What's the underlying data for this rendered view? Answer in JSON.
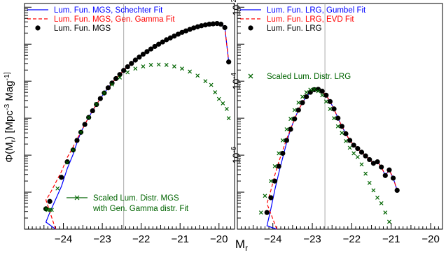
{
  "figure": {
    "ylabel": "Φ(M_r) [Mpc^-3 Mag^-1]",
    "xlabel": "M_r"
  },
  "chart_data": [
    {
      "type": "scatter",
      "panel": "left",
      "xlim": [
        -25,
        -19.6
      ],
      "x_reversed": true,
      "ylim": [
        -8,
        -1.9
      ],
      "y_log": true,
      "x_ticks": [
        -24,
        -23,
        -22,
        -21,
        -20
      ],
      "x_tick_labels": [
        "−24",
        "−23",
        "−22",
        "−21",
        "−20"
      ],
      "y_major_ticks": [
        -7,
        -6,
        -5,
        -4,
        -3,
        -2
      ],
      "y_tick_labels": [],
      "vertical_line": -22.45,
      "legend_position": "top-left",
      "legend": [
        {
          "label": "Lum. Fun. MGS, Schechter Fit",
          "style": "solid-line",
          "color": "#0000ff"
        },
        {
          "label": "Lum. Fun. MGS, Gen. Gamma Fit",
          "style": "dashed-line",
          "color": "#ff0000"
        },
        {
          "label": "Lum. Fun. MGS",
          "style": "filled-circle",
          "color": "#000000"
        }
      ],
      "annotation": {
        "lines": [
          "Scaled Lum. Distr. MGS",
          "with Gen. Gamma distr. Fit"
        ],
        "color": "#006400",
        "position": "bottom-center"
      },
      "series": [
        {
          "name": "Lum. Fun. MGS",
          "marker": "circle",
          "color": "#000000",
          "x": [
            -24.45,
            -24.35,
            -24.05,
            -23.9,
            -23.75,
            -23.65,
            -23.55,
            -23.45,
            -23.35,
            -23.25,
            -23.15,
            -23.05,
            -22.95,
            -22.85,
            -22.75,
            -22.65,
            -22.55,
            -22.45,
            -22.35,
            -22.25,
            -22.15,
            -22.05,
            -21.95,
            -21.85,
            -21.75,
            -21.65,
            -21.55,
            -21.45,
            -21.35,
            -21.25,
            -21.15,
            -21.05,
            -20.95,
            -20.85,
            -20.75,
            -20.65,
            -20.55,
            -20.45,
            -20.35,
            -20.25,
            -20.15,
            -20.05,
            -19.95,
            -19.85,
            -19.75
          ],
          "y": [
            -7.45,
            -7.25,
            -6.6,
            -6.18,
            -5.86,
            -5.6,
            -5.38,
            -5.17,
            -4.98,
            -4.8,
            -4.63,
            -4.47,
            -4.32,
            -4.18,
            -4.05,
            -3.93,
            -3.82,
            -3.71,
            -3.61,
            -3.52,
            -3.43,
            -3.35,
            -3.27,
            -3.2,
            -3.13,
            -3.06,
            -3.0,
            -2.94,
            -2.88,
            -2.83,
            -2.78,
            -2.73,
            -2.68,
            -2.64,
            -2.6,
            -2.56,
            -2.53,
            -2.5,
            -2.48,
            -2.46,
            -2.45,
            -2.44,
            -2.46,
            -2.55,
            -3.48
          ]
        },
        {
          "name": "Scaled Lum. Distr. MGS",
          "marker": "cross",
          "color": "#006400",
          "x": [
            -24.45,
            -24.4,
            -24.35,
            -24.3,
            -24.15,
            -23.9,
            -23.75,
            -23.55,
            -23.35,
            -23.15,
            -22.95,
            -22.75,
            -22.55,
            -22.35,
            -22.15,
            -21.95,
            -21.75,
            -21.55,
            -21.35,
            -21.15,
            -20.95,
            -20.75,
            -20.55,
            -20.35,
            -20.2,
            -20.1,
            -20.0,
            -19.9,
            -19.8,
            -19.75
          ],
          "y": [
            -7.45,
            -7.48,
            -7.48,
            -7.48,
            -6.9,
            -6.2,
            -5.86,
            -5.38,
            -4.98,
            -4.62,
            -4.32,
            -4.09,
            -3.9,
            -3.76,
            -3.66,
            -3.6,
            -3.56,
            -3.55,
            -3.56,
            -3.6,
            -3.66,
            -3.74,
            -3.85,
            -4.0,
            -4.1,
            -4.3,
            -4.48,
            -4.6,
            -4.75,
            -5.0
          ]
        }
      ],
      "fits": [
        {
          "name": "Lum. Fun. MGS, Schechter Fit",
          "style": "solid",
          "color": "#0000ff"
        },
        {
          "name": "Lum. Fun. MGS, Gen. Gamma Fit",
          "style": "dashed",
          "color": "#ff0000"
        }
      ]
    },
    {
      "type": "scatter",
      "panel": "right",
      "xlim": [
        -24.9,
        -19.7
      ],
      "x_reversed": true,
      "ylim": [
        -8,
        -1.9
      ],
      "y_log": true,
      "x_ticks": [
        -24,
        -23,
        -22,
        -21,
        -20
      ],
      "x_tick_labels": [
        "−24",
        "−23",
        "−22",
        "−21",
        "−20"
      ],
      "y_major_ticks": [
        -8,
        -6,
        -4,
        -2
      ],
      "y_tick_labels": [
        "10^-6",
        "10^-4",
        "10^-2"
      ],
      "vertical_line": -22.68,
      "legend_position": "top-left",
      "legend": [
        {
          "label": "Lum. Fun. LRG, Gumbel Fit",
          "style": "solid-line",
          "color": "#0000ff"
        },
        {
          "label": "Lum. Fun. LRG, EVD Fit",
          "style": "dashed-line",
          "color": "#ff0000"
        },
        {
          "label": "Lum. Fun. LRG",
          "style": "filled-circle",
          "color": "#000000"
        },
        {
          "label": "Scaled Lum. Distr. LRG",
          "style": "cross",
          "color": "#006400"
        }
      ],
      "series": [
        {
          "name": "Lum. Fun. LRG",
          "marker": "circle",
          "color": "#000000",
          "x": [
            -24.15,
            -24.05,
            -23.95,
            -23.85,
            -23.75,
            -23.65,
            -23.55,
            -23.45,
            -23.35,
            -23.25,
            -23.15,
            -23.05,
            -22.95,
            -22.85,
            -22.75,
            -22.65,
            -22.55,
            -22.45,
            -22.35,
            -22.25,
            -22.15,
            -22.05,
            -21.95,
            -21.85,
            -21.75,
            -21.65,
            -21.55,
            -21.45,
            -21.35,
            -21.25,
            -21.15,
            -21.05,
            -20.95,
            -20.85
          ],
          "y": [
            -7.55,
            -7.15,
            -6.7,
            -6.3,
            -5.95,
            -5.6,
            -5.3,
            -5.02,
            -4.78,
            -4.58,
            -4.42,
            -4.3,
            -4.23,
            -4.22,
            -4.27,
            -4.38,
            -4.55,
            -4.75,
            -5.0,
            -5.22,
            -5.42,
            -5.6,
            -5.73,
            -5.82,
            -5.92,
            -6.02,
            -6.12,
            -6.22,
            -6.18,
            -6.32,
            -6.55,
            -6.4,
            -6.62,
            -6.95
          ]
        },
        {
          "name": "Scaled Lum. Distr. LRG",
          "marker": "cross",
          "color": "#006400",
          "x": [
            -24.3,
            -24.2,
            -24.05,
            -23.95,
            -23.85,
            -23.75,
            -23.65,
            -23.55,
            -23.45,
            -23.35,
            -23.25,
            -23.15,
            -23.05,
            -22.95,
            -22.85,
            -22.75,
            -22.65,
            -22.55,
            -22.45,
            -22.35,
            -22.25,
            -22.15,
            -22.05,
            -21.95,
            -21.85,
            -21.75,
            -21.65,
            -21.55,
            -21.45,
            -21.35,
            -21.25,
            -21.15,
            -21.05
          ],
          "y": [
            -7.55,
            -7.1,
            -6.7,
            -6.3,
            -5.95,
            -5.6,
            -5.3,
            -5.02,
            -4.78,
            -4.58,
            -4.42,
            -4.3,
            -4.23,
            -4.22,
            -4.27,
            -4.38,
            -4.55,
            -4.75,
            -5.0,
            -5.22,
            -5.4,
            -5.62,
            -5.8,
            -5.95,
            -6.05,
            -6.25,
            -6.5,
            -6.75,
            -6.95,
            -7.15,
            -7.3,
            -7.55,
            -7.8
          ]
        }
      ],
      "fits": [
        {
          "name": "Lum. Fun. LRG, Gumbel Fit",
          "style": "solid",
          "color": "#0000ff"
        },
        {
          "name": "Lum. Fun. LRG, EVD Fit",
          "style": "dashed",
          "color": "#ff0000"
        }
      ]
    }
  ]
}
